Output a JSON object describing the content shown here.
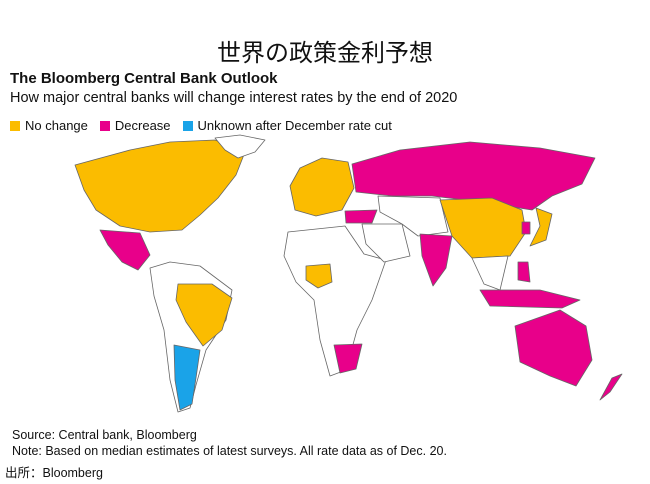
{
  "jp_title": "世界の政策金利予想",
  "title": "The Bloomberg Central Bank Outlook",
  "subtitle": "How major central banks will change interest rates by the end of 2020",
  "legend": [
    {
      "label": "No change",
      "status": "no_change"
    },
    {
      "label": "Decrease",
      "status": "decrease"
    },
    {
      "label": "Unknown after December rate cut",
      "status": "unknown"
    }
  ],
  "colors": {
    "no_change": "#fbbc00",
    "decrease": "#e8008a",
    "unknown": "#1aa3e8",
    "other": "#ffffff",
    "border": "#666666"
  },
  "regions": [
    {
      "id": "north-america",
      "status": "no_change"
    },
    {
      "id": "greenland",
      "status": "other"
    },
    {
      "id": "mexico",
      "status": "decrease"
    },
    {
      "id": "south-america",
      "status": "other"
    },
    {
      "id": "brazil",
      "status": "no_change"
    },
    {
      "id": "argentina",
      "status": "unknown"
    },
    {
      "id": "europe",
      "status": "no_change"
    },
    {
      "id": "russia",
      "status": "decrease"
    },
    {
      "id": "turkey",
      "status": "decrease"
    },
    {
      "id": "africa",
      "status": "other"
    },
    {
      "id": "nigeria",
      "status": "no_change"
    },
    {
      "id": "south-africa",
      "status": "decrease"
    },
    {
      "id": "middle-east",
      "status": "other"
    },
    {
      "id": "central-asia",
      "status": "other"
    },
    {
      "id": "india",
      "status": "decrease"
    },
    {
      "id": "china",
      "status": "no_change"
    },
    {
      "id": "southeast-asia",
      "status": "other"
    },
    {
      "id": "korea",
      "status": "decrease"
    },
    {
      "id": "japan",
      "status": "no_change"
    },
    {
      "id": "indonesia",
      "status": "decrease"
    },
    {
      "id": "philippines",
      "status": "decrease"
    },
    {
      "id": "australia",
      "status": "decrease"
    },
    {
      "id": "new-zealand",
      "status": "decrease"
    }
  ],
  "source": "Source: Central bank, Bloomberg",
  "note": "Note: Based on median estimates of latest surveys. All rate data as of Dec. 20.",
  "credit": "出所：Bloomberg"
}
